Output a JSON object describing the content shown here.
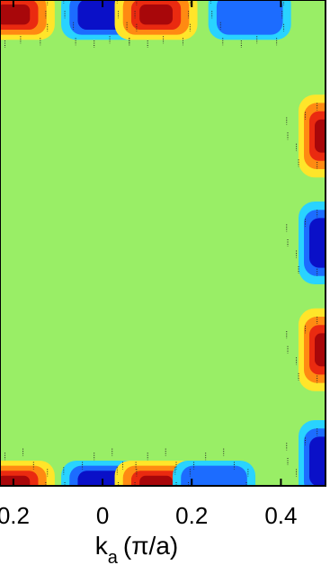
{
  "chart_data": {
    "type": "heatmap",
    "title": "",
    "xlabel": {
      "main": "k",
      "subscript": "a",
      "units": "(π/a)"
    },
    "ylabel": "",
    "x_tick_labels": [
      "0.2",
      "0",
      "0.2",
      "0.4"
    ],
    "x_ticks": [
      -0.2,
      0,
      0.2,
      0.4
    ],
    "xlim": [
      -0.23,
      0.5
    ],
    "ylim": [
      -0.5,
      0.5
    ],
    "grid": false,
    "background_value_color": "#99ee66",
    "colormap": [
      "#0a10c8",
      "#1c6cff",
      "#29d3ff",
      "#99ee66",
      "#ffe52a",
      "#ff8a12",
      "#ea2a10",
      "#a8070a"
    ],
    "hotspots": [
      {
        "kx": -0.2,
        "ky": 0.47,
        "sign": "positive"
      },
      {
        "kx": 0.0,
        "ky": 0.47,
        "sign": "negative"
      },
      {
        "kx": 0.12,
        "ky": 0.47,
        "sign": "positive"
      },
      {
        "kx": 0.33,
        "ky": 0.47,
        "sign": "negative-weak"
      },
      {
        "kx": 0.5,
        "ky": 0.22,
        "sign": "positive"
      },
      {
        "kx": 0.5,
        "ky": 0.0,
        "sign": "negative"
      },
      {
        "kx": 0.5,
        "ky": -0.22,
        "sign": "positive"
      },
      {
        "kx": 0.5,
        "ky": -0.45,
        "sign": "negative"
      },
      {
        "kx": -0.2,
        "ky": -0.5,
        "sign": "positive"
      },
      {
        "kx": 0.0,
        "ky": -0.5,
        "sign": "negative"
      },
      {
        "kx": 0.12,
        "ky": -0.5,
        "sign": "positive"
      },
      {
        "kx": 0.25,
        "ky": -0.5,
        "sign": "negative-weak"
      }
    ]
  }
}
